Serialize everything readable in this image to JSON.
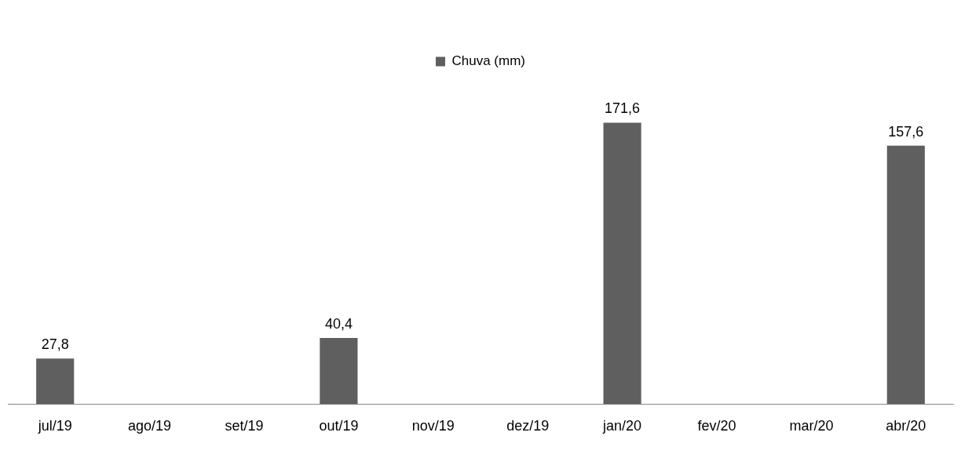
{
  "chart_data": {
    "type": "bar",
    "categories": [
      "jul/19",
      "ago/19",
      "set/19",
      "out/19",
      "nov/19",
      "dez/19",
      "jan/20",
      "fev/20",
      "mar/20",
      "abr/20"
    ],
    "series": [
      {
        "name": "Chuva (mm)",
        "color": "#5f5f5f",
        "values": [
          27.8,
          null,
          null,
          40.4,
          null,
          null,
          171.6,
          null,
          null,
          157.6
        ],
        "value_labels": [
          "27,8",
          null,
          null,
          "40,4",
          null,
          null,
          "171,6",
          null,
          null,
          "157,6"
        ]
      }
    ],
    "legend": "top",
    "grid": false
  }
}
